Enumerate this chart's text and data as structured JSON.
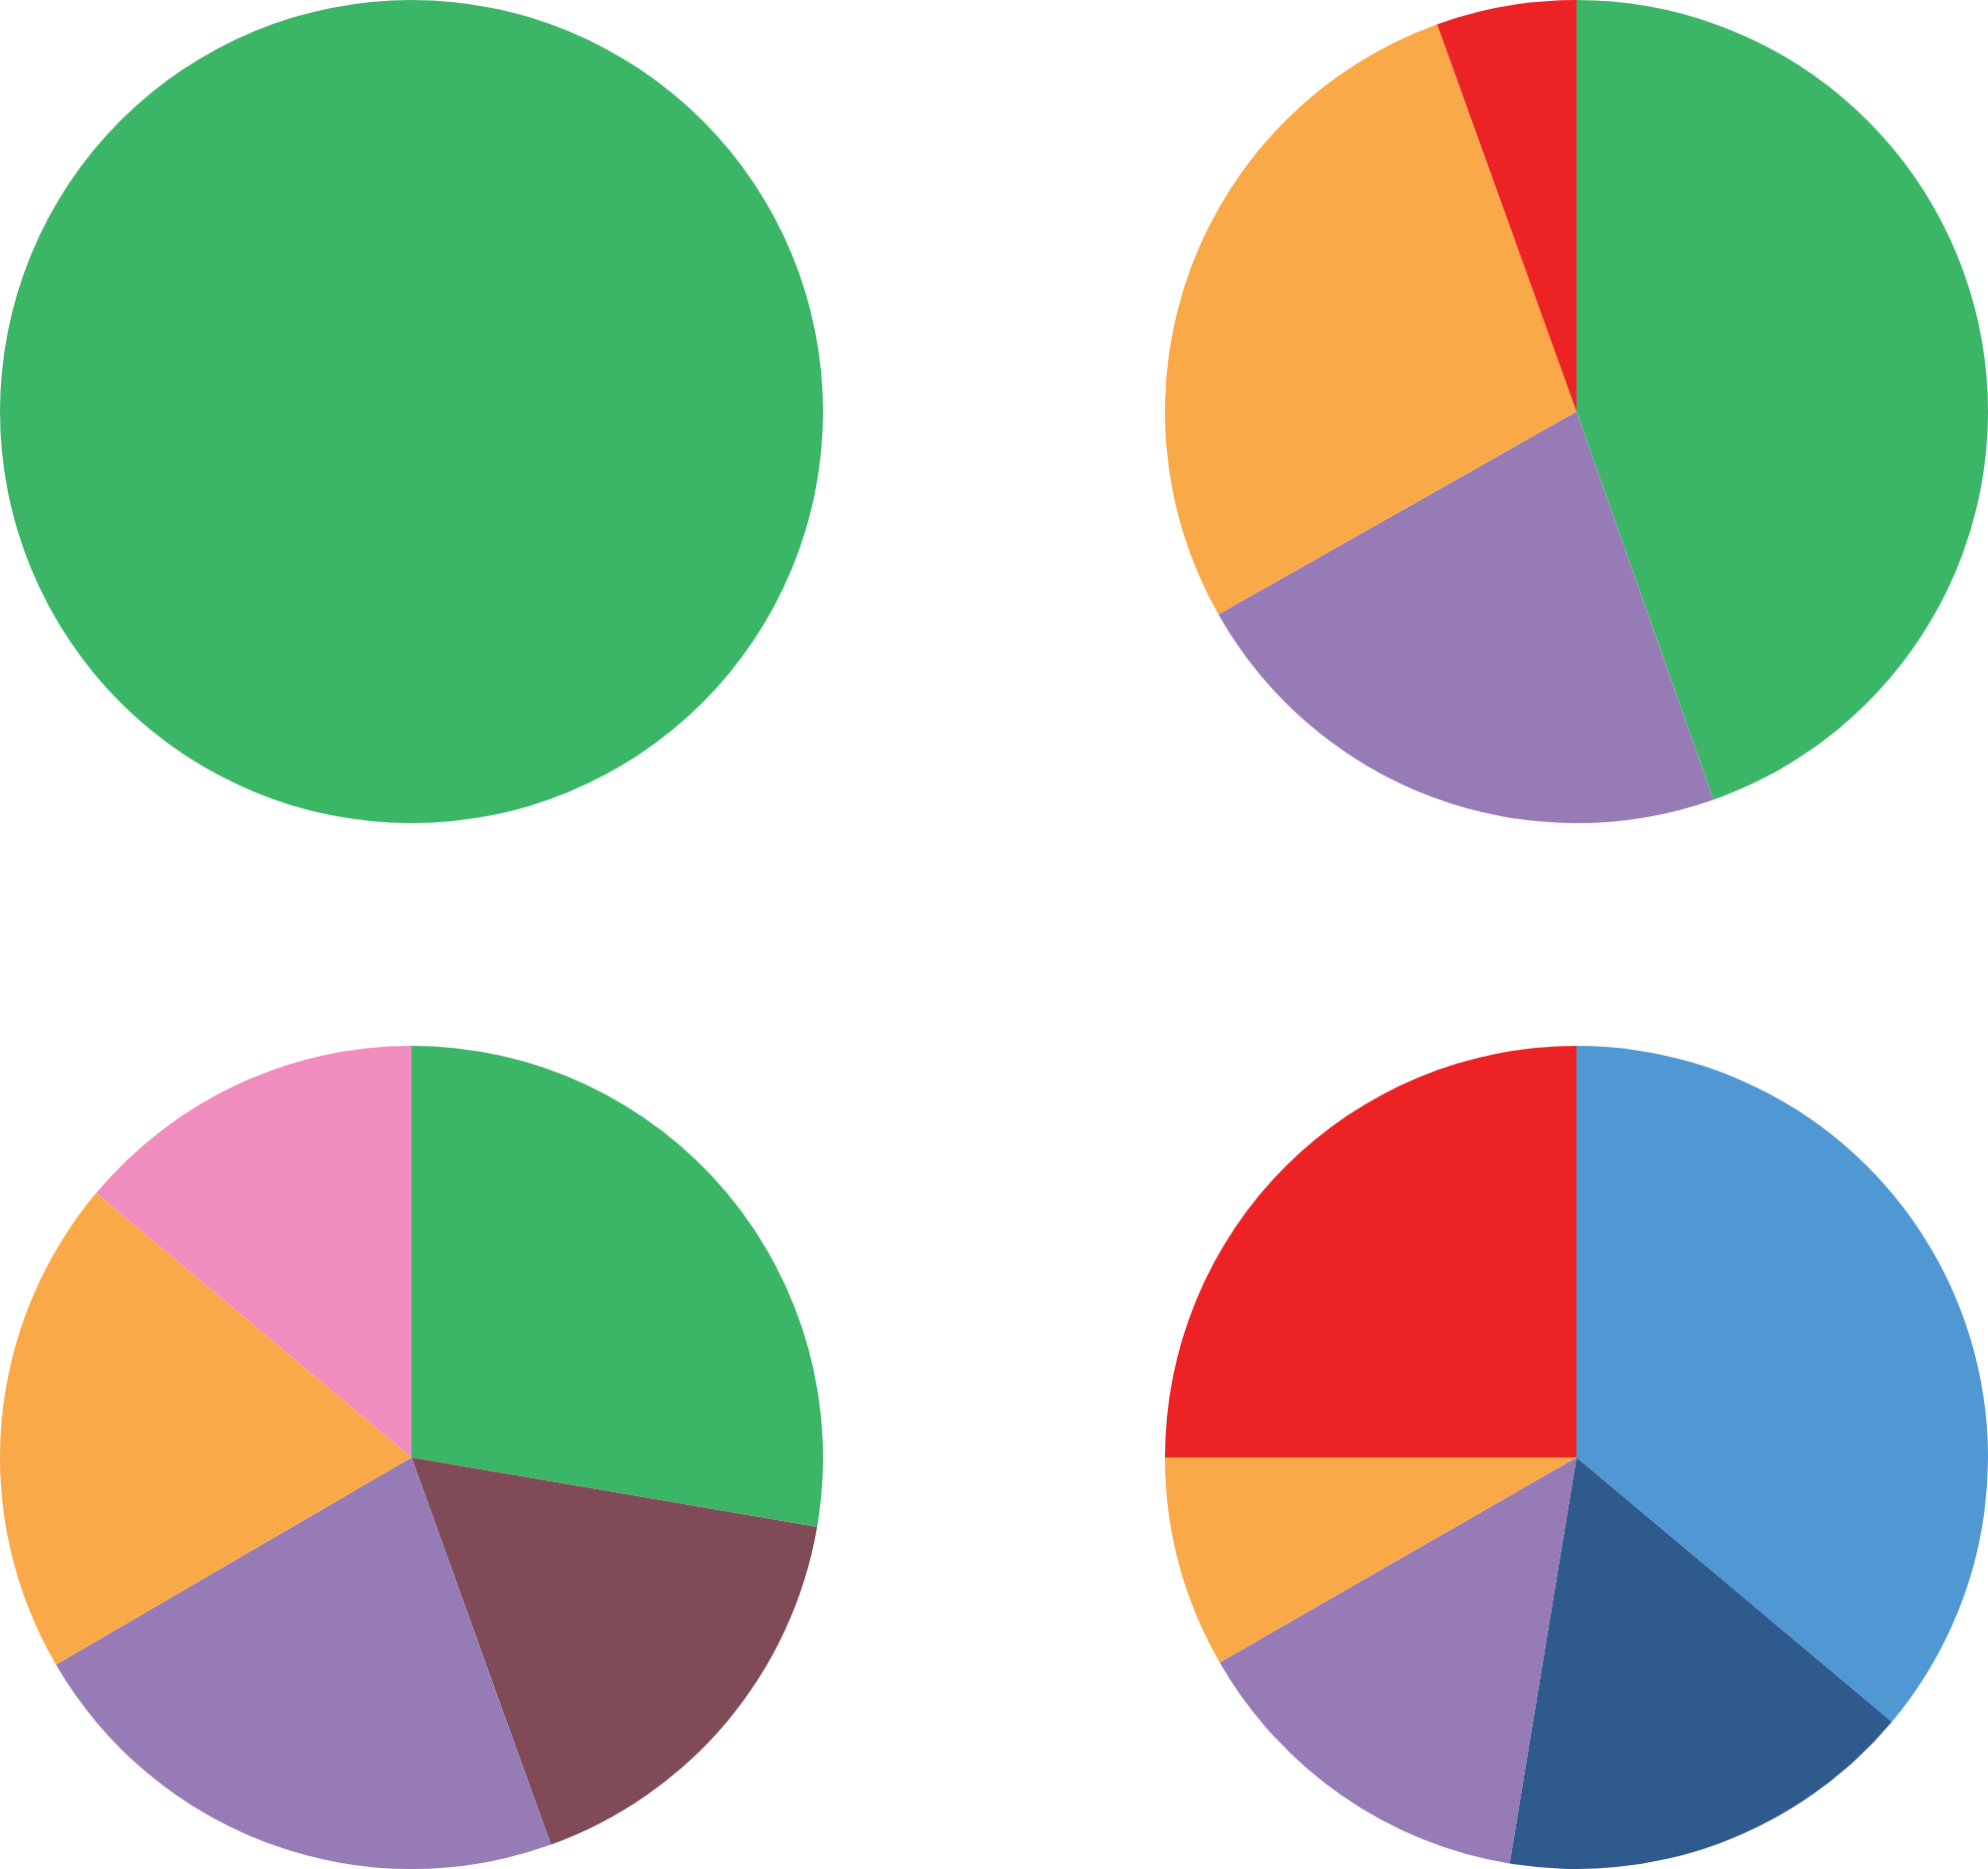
{
  "chart_data": [
    {
      "type": "pie",
      "categories": [
        null
      ],
      "values": [
        100
      ],
      "colors": [
        "#3bb667"
      ]
    },
    {
      "type": "pie",
      "categories": [
        null,
        null,
        null,
        null
      ],
      "values": [
        44.6,
        22.2,
        27.7,
        5.5
      ],
      "colors": [
        "#3bb667",
        "#967bb6",
        "#f9a947",
        "#ed2224"
      ]
    },
    {
      "type": "pie",
      "categories": [
        null,
        null,
        null,
        null,
        null
      ],
      "values": [
        27.7,
        16.8,
        22.1,
        19.5,
        13.9
      ],
      "colors": [
        "#3bb667",
        "#804b57",
        "#967bb6",
        "#f9a947",
        "#f18cbf"
      ]
    },
    {
      "type": "pie",
      "categories": [
        null,
        null,
        null,
        null,
        null
      ],
      "values": [
        36.1,
        16.5,
        14.1,
        8.3,
        25
      ],
      "colors": [
        "#4f98d3",
        "#2e5a8e",
        "#967bb6",
        "#f9a947",
        "#ed2224"
      ]
    }
  ]
}
